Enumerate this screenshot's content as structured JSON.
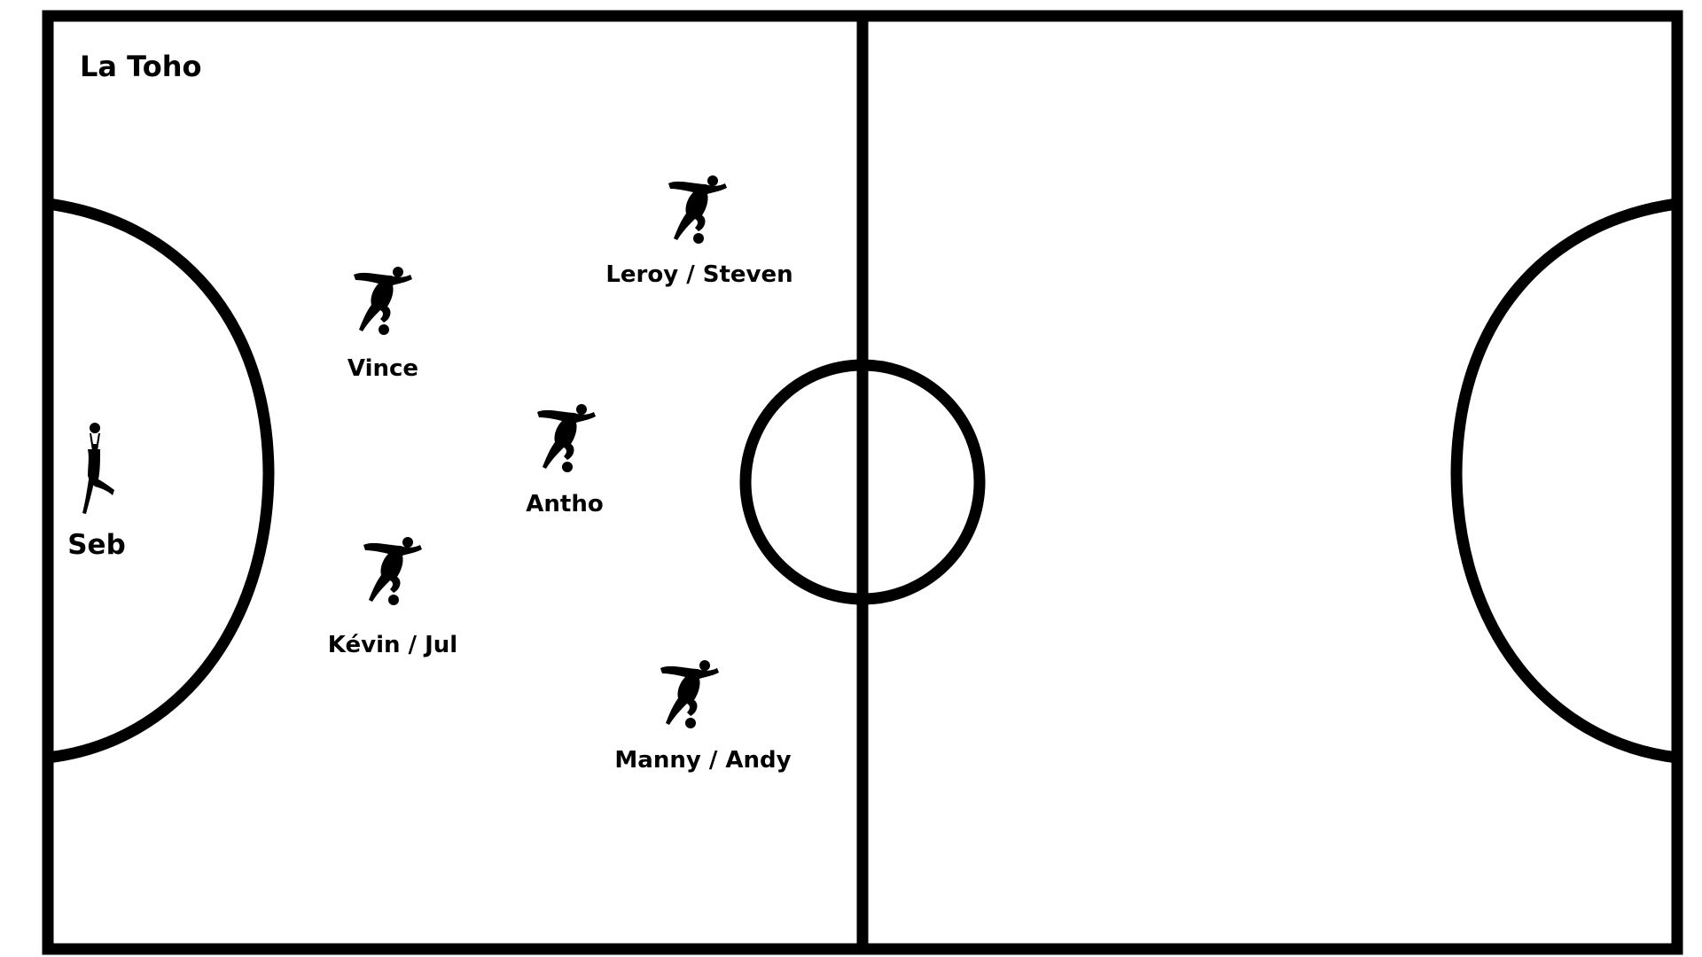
{
  "team_name": "La Toho",
  "colors": {
    "line": "#000000",
    "background": "#ffffff"
  },
  "goalkeeper": {
    "name": "Seb",
    "icon": "goalkeeper-silhouette-icon"
  },
  "players": [
    {
      "name": "Leroy / Steven",
      "icon": "kicking-player-icon"
    },
    {
      "name": "Vince",
      "icon": "kicking-player-icon"
    },
    {
      "name": "Antho",
      "icon": "kicking-player-icon"
    },
    {
      "name": "Kévin / Jul",
      "icon": "kicking-player-icon"
    },
    {
      "name": "Manny / Andy",
      "icon": "kicking-player-icon"
    }
  ]
}
